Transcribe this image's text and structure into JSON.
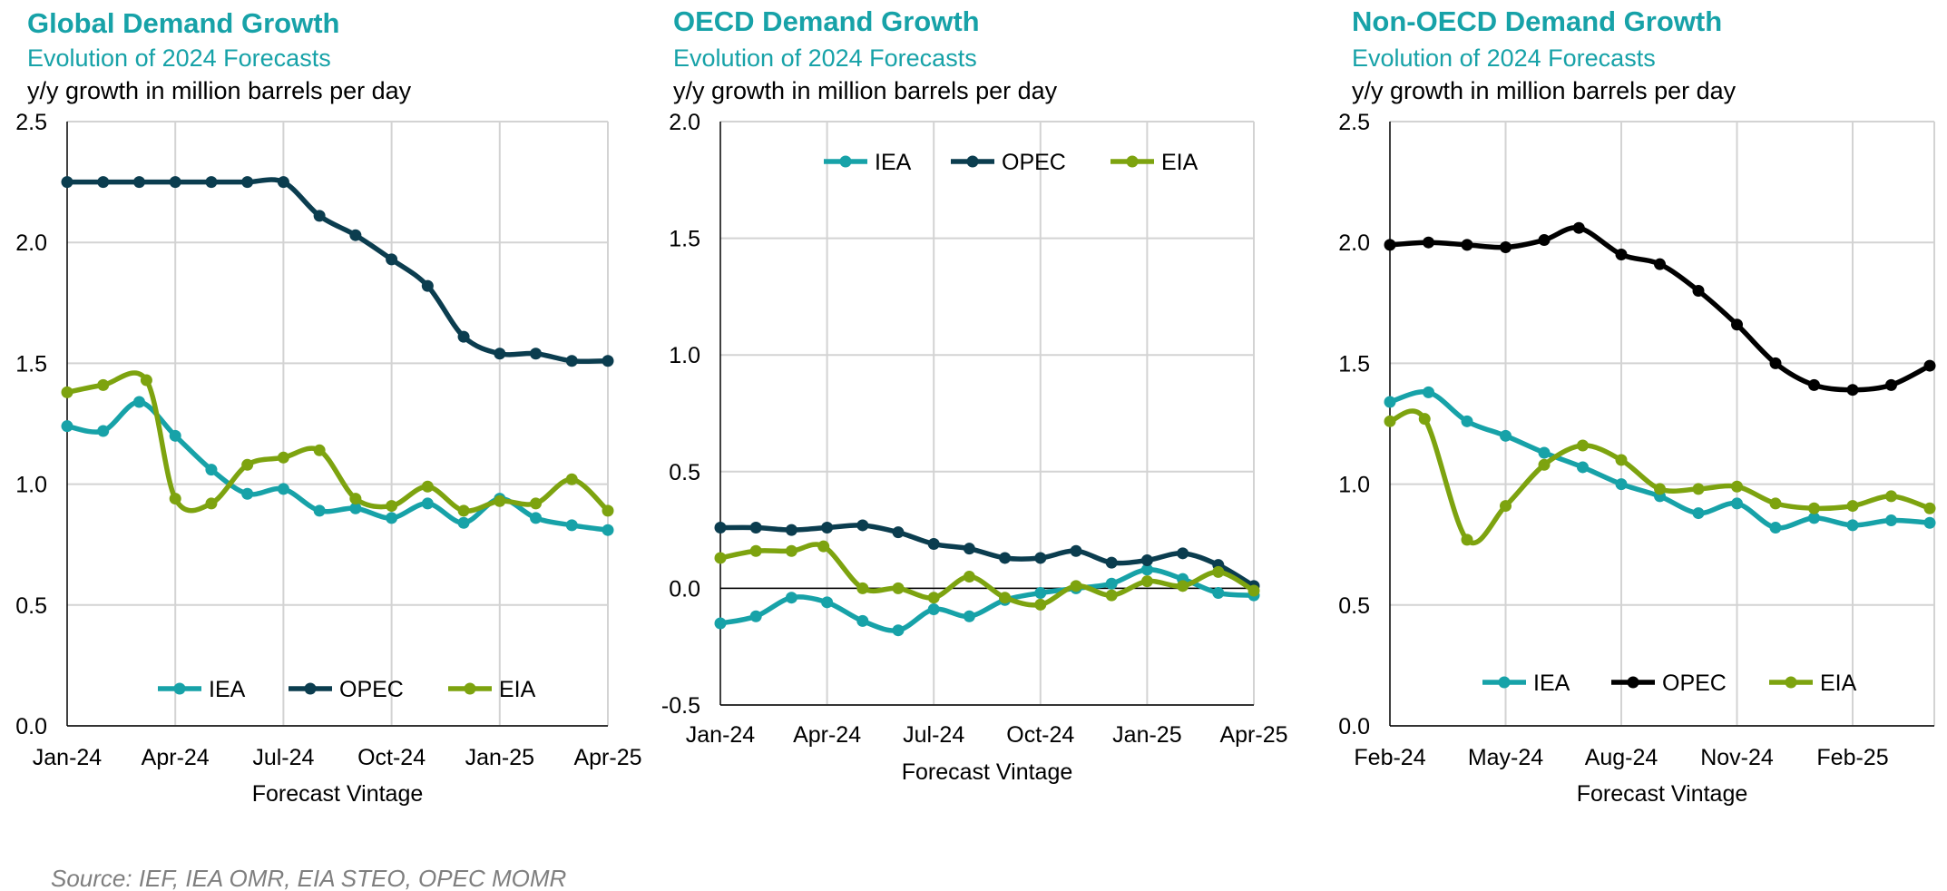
{
  "source": "Source: IEF, IEA OMR, EIA STEO, OPEC MOMR",
  "colors": {
    "IEA": "#17a2a8",
    "OPEC": "#0b3d4f",
    "OPEC_nonoecd": "#000000",
    "EIA": "#7da30f",
    "grid": "#d3d3d3"
  },
  "chart_data": [
    {
      "type": "line",
      "title": "Global Demand Growth",
      "subtitle": "Evolution of 2024 Forecasts",
      "unit_label": "y/y growth in million barrels per day",
      "xlabel": "Forecast Vintage",
      "ylim": [
        0,
        2.5
      ],
      "yticks": [
        "0.0",
        "0.5",
        "1.0",
        "1.5",
        "2.0",
        "2.5"
      ],
      "xticks": [
        "Jan-24",
        "Apr-24",
        "Jul-24",
        "Oct-24",
        "Jan-25",
        "Apr-25"
      ],
      "xtick_index": [
        0,
        3,
        6,
        9,
        12,
        15
      ],
      "n_points": 16,
      "legend_position": "bottom-center",
      "series": [
        {
          "name": "IEA",
          "values": [
            1.24,
            1.22,
            1.34,
            1.2,
            1.06,
            0.96,
            0.98,
            0.89,
            0.9,
            0.86,
            0.92,
            0.84,
            0.94,
            0.86,
            0.83,
            0.81
          ]
        },
        {
          "name": "OPEC",
          "values": [
            2.25,
            2.25,
            2.25,
            2.25,
            2.25,
            2.25,
            2.25,
            2.11,
            2.03,
            1.93,
            1.82,
            1.61,
            1.54,
            1.54,
            1.51,
            1.51
          ]
        },
        {
          "name": "EIA",
          "values": [
            1.38,
            1.41,
            1.43,
            0.94,
            0.92,
            1.08,
            1.11,
            1.14,
            0.94,
            0.91,
            0.99,
            0.89,
            0.93,
            0.92,
            1.02,
            0.89
          ],
          "x": [
            0,
            1,
            2.2,
            3,
            4,
            5,
            6,
            7,
            8,
            9,
            10,
            11,
            12,
            13,
            14,
            15
          ]
        }
      ]
    },
    {
      "type": "line",
      "title": "OECD Demand Growth",
      "subtitle": "Evolution of 2024 Forecasts",
      "unit_label": "y/y growth in million barrels per day",
      "xlabel": "Forecast Vintage",
      "ylim": [
        -0.5,
        2.0
      ],
      "yticks": [
        "-0.5",
        "0.0",
        "0.5",
        "1.0",
        "1.5",
        "2.0"
      ],
      "xticks": [
        "Jan-24",
        "Apr-24",
        "Jul-24",
        "Oct-24",
        "Jan-25",
        "Apr-25"
      ],
      "xtick_index": [
        0,
        3,
        6,
        9,
        12,
        15
      ],
      "n_points": 16,
      "legend_position": "top-center",
      "zero_line": true,
      "series": [
        {
          "name": "IEA",
          "values": [
            -0.15,
            -0.12,
            -0.04,
            -0.06,
            -0.14,
            -0.18,
            -0.09,
            -0.12,
            -0.05,
            -0.02,
            0.0,
            0.02,
            0.08,
            0.04,
            -0.02,
            -0.03
          ]
        },
        {
          "name": "OPEC",
          "values": [
            0.26,
            0.26,
            0.25,
            0.26,
            0.27,
            0.24,
            0.19,
            0.17,
            0.13,
            0.13,
            0.16,
            0.11,
            0.12,
            0.15,
            0.1,
            0.01
          ]
        },
        {
          "name": "EIA",
          "values": [
            0.13,
            0.16,
            0.16,
            0.18,
            0.0,
            0.0,
            -0.04,
            0.05,
            -0.04,
            -0.07,
            0.01,
            -0.03,
            0.03,
            0.01,
            0.07,
            -0.01
          ],
          "x": [
            0,
            1,
            2,
            2.9,
            4,
            5,
            6,
            7,
            8,
            9,
            10,
            11,
            12,
            13,
            14,
            15
          ]
        }
      ]
    },
    {
      "type": "line",
      "title": "Non-OECD Demand Growth",
      "subtitle": "Evolution of 2024 Forecasts",
      "unit_label": "y/y growth in million barrels per day",
      "xlabel": "Forecast Vintage",
      "ylim": [
        0,
        2.5
      ],
      "yticks": [
        "0.0",
        "0.5",
        "1.0",
        "1.5",
        "2.0",
        "2.5"
      ],
      "xticks": [
        "Feb-24",
        "May-24",
        "Aug-24",
        "Nov-24",
        "Feb-25"
      ],
      "xtick_index": [
        0,
        3,
        6,
        9,
        12
      ],
      "n_points": 15,
      "legend_position": "bottom-center",
      "series": [
        {
          "name": "IEA",
          "values": [
            1.34,
            1.38,
            1.26,
            1.2,
            1.13,
            1.07,
            1.0,
            0.95,
            0.88,
            0.92,
            0.82,
            0.86,
            0.83,
            0.85,
            0.84
          ]
        },
        {
          "name": "OPEC",
          "values": [
            1.99,
            2.0,
            1.99,
            1.98,
            2.01,
            2.06,
            1.95,
            1.91,
            1.8,
            1.66,
            1.5,
            1.41,
            1.39,
            1.41,
            1.49
          ],
          "x": [
            0,
            1,
            2,
            3,
            4,
            4.9,
            6,
            7,
            8,
            9,
            10,
            11,
            12,
            13,
            14
          ]
        },
        {
          "name": "EIA",
          "values": [
            1.26,
            1.27,
            0.77,
            0.91,
            1.08,
            1.16,
            1.1,
            0.98,
            0.98,
            0.99,
            0.92,
            0.9,
            0.91,
            0.95,
            0.9
          ],
          "x": [
            0,
            0.9,
            2,
            3,
            4,
            5,
            6,
            7,
            8,
            9,
            10,
            11,
            12,
            13,
            14
          ]
        }
      ]
    }
  ]
}
